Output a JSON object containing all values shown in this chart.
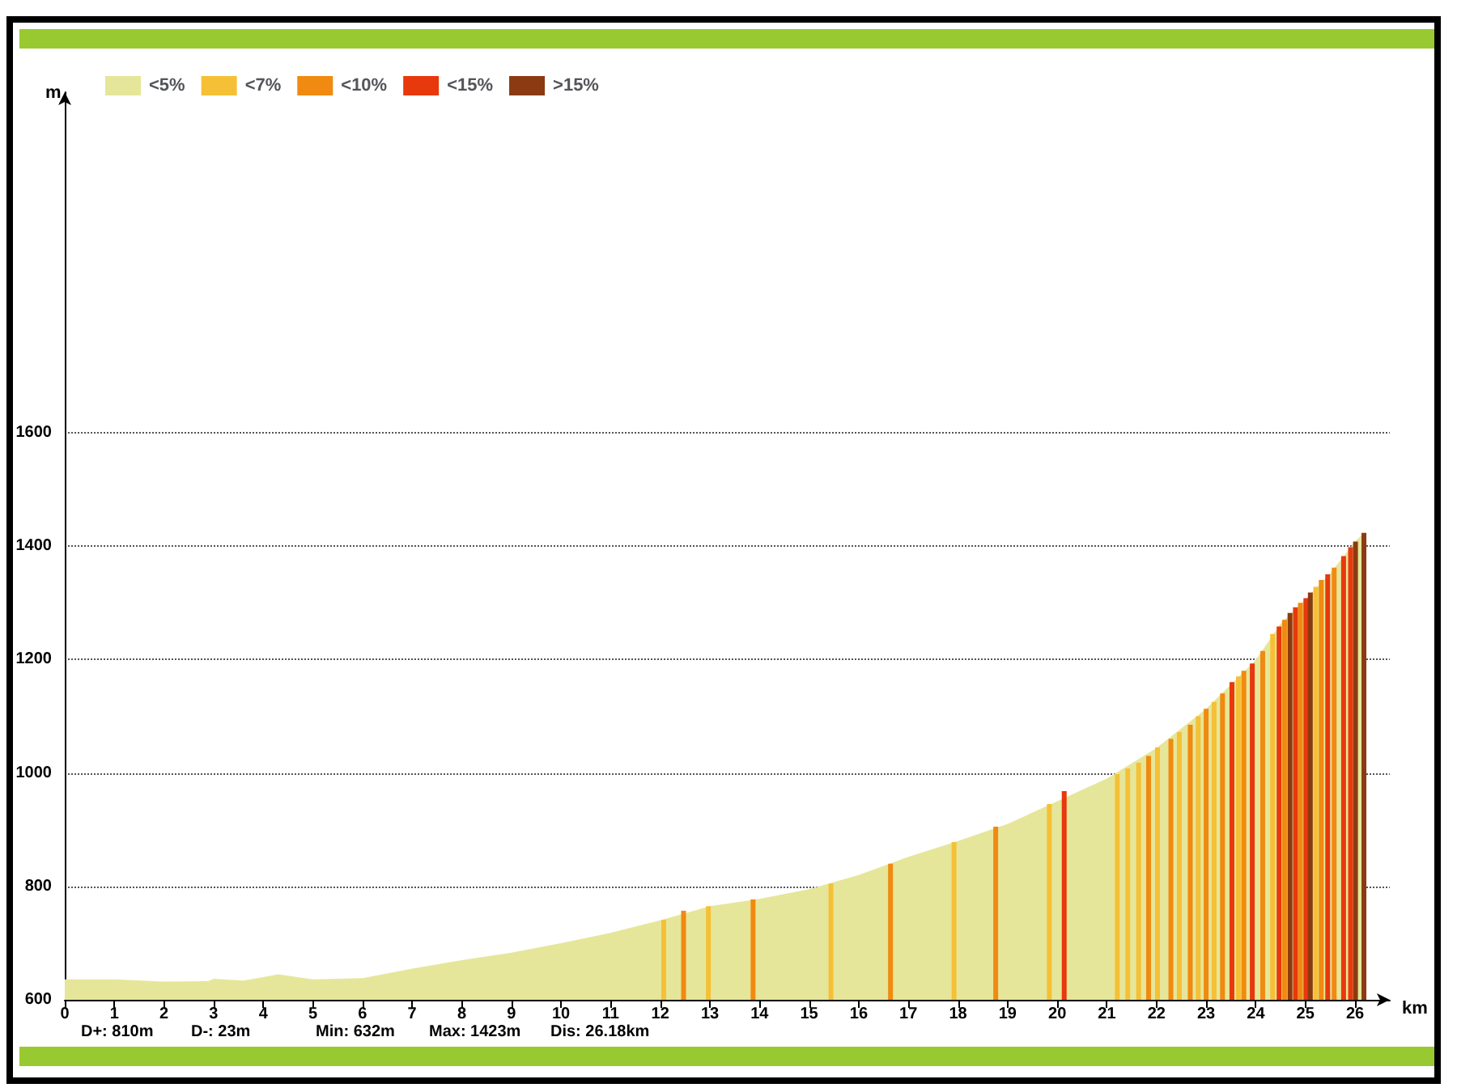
{
  "chart_data": {
    "type": "area",
    "xlabel": "km",
    "ylabel": "m",
    "xlim": [
      0,
      26.7
    ],
    "xticks": [
      0,
      1,
      2,
      3,
      4,
      5,
      6,
      7,
      8,
      9,
      10,
      11,
      12,
      13,
      14,
      15,
      16,
      17,
      18,
      19,
      20,
      21,
      22,
      23,
      24,
      25,
      26
    ],
    "ylim": [
      600,
      2200
    ],
    "yticks": [
      600,
      800,
      1000,
      1200,
      1400,
      1600
    ],
    "grid": "y",
    "line_style": "dotted",
    "legend": "top left",
    "marker": "none",
    "annotations": [
      "D+: 810m",
      "D-: 23m",
      "Min: 632m",
      "Max: 1423m",
      "Dis: 26.18km"
    ],
    "series": [
      {
        "name": "<5%",
        "color": "#e6e69a",
        "x": [
          0,
          1,
          2,
          2.9,
          3,
          3.6,
          4,
          4.3,
          5,
          6,
          7,
          8,
          9,
          10,
          11,
          12,
          13,
          14,
          15,
          16,
          17,
          18,
          19,
          20,
          21,
          22,
          23,
          24,
          24.5,
          25,
          25.5,
          26,
          26.18
        ],
        "values": [
          636,
          636,
          632,
          633,
          637,
          634,
          640,
          645,
          636,
          638,
          655,
          670,
          683,
          700,
          718,
          740,
          765,
          778,
          795,
          820,
          852,
          880,
          910,
          950,
          990,
          1044,
          1113,
          1199,
          1263,
          1306,
          1352,
          1408,
          1423
        ]
      },
      {
        "name": "<7%",
        "type": "bar",
        "color": "#f5c036",
        "x": [
          12.07,
          12.97,
          15.44,
          17.92,
          19.84,
          21.21,
          21.42,
          21.64,
          22.02,
          22.46,
          22.84,
          23.16,
          23.65,
          24.34,
          25.21
        ],
        "values": [
          741,
          765,
          805,
          878,
          945,
          998,
          1008,
          1018,
          1045,
          1072,
          1100,
          1125,
          1170,
          1245,
          1328
        ]
      },
      {
        "name": "<10%",
        "type": "bar",
        "color": "#f08a10",
        "x": [
          12.47,
          13.87,
          16.64,
          18.76,
          21.84,
          22.29,
          22.68,
          23.0,
          23.33,
          23.76,
          24.14,
          24.58,
          24.9,
          25.32,
          25.58
        ],
        "values": [
          757,
          777,
          840,
          905,
          1030,
          1060,
          1085,
          1113,
          1140,
          1180,
          1215,
          1270,
          1300,
          1340,
          1362
        ]
      },
      {
        "name": "<15%",
        "type": "bar",
        "color": "#e8380d",
        "x": [
          20.14,
          23.52,
          23.93,
          24.47,
          24.8,
          25.01,
          25.45,
          25.77,
          25.91
        ],
        "values": [
          968,
          1160,
          1193,
          1258,
          1292,
          1308,
          1350,
          1382,
          1398
        ]
      },
      {
        "name": ">15%",
        "type": "bar",
        "color": "#8b3a12",
        "x": [
          24.69,
          25.1,
          26.01,
          26.18
        ],
        "values": [
          1282,
          1318,
          1408,
          1423
        ]
      }
    ]
  }
}
